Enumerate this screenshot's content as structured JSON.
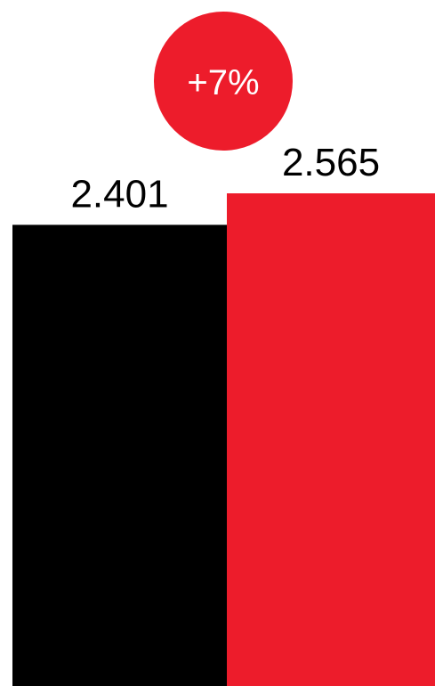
{
  "chart_data": {
    "type": "bar",
    "categories": [
      "",
      ""
    ],
    "values": [
      2.401,
      2.565
    ],
    "value_labels": [
      "2.401",
      "2.565"
    ],
    "bar_colors": [
      "#000000",
      "#ED1C2B"
    ],
    "ylim": [
      0,
      2.565
    ],
    "axes_visible": false,
    "grid": false,
    "legend": "none",
    "change_badge": {
      "text": "+7%",
      "color": "#ED1C2B",
      "text_color": "#FFFFFF"
    }
  }
}
